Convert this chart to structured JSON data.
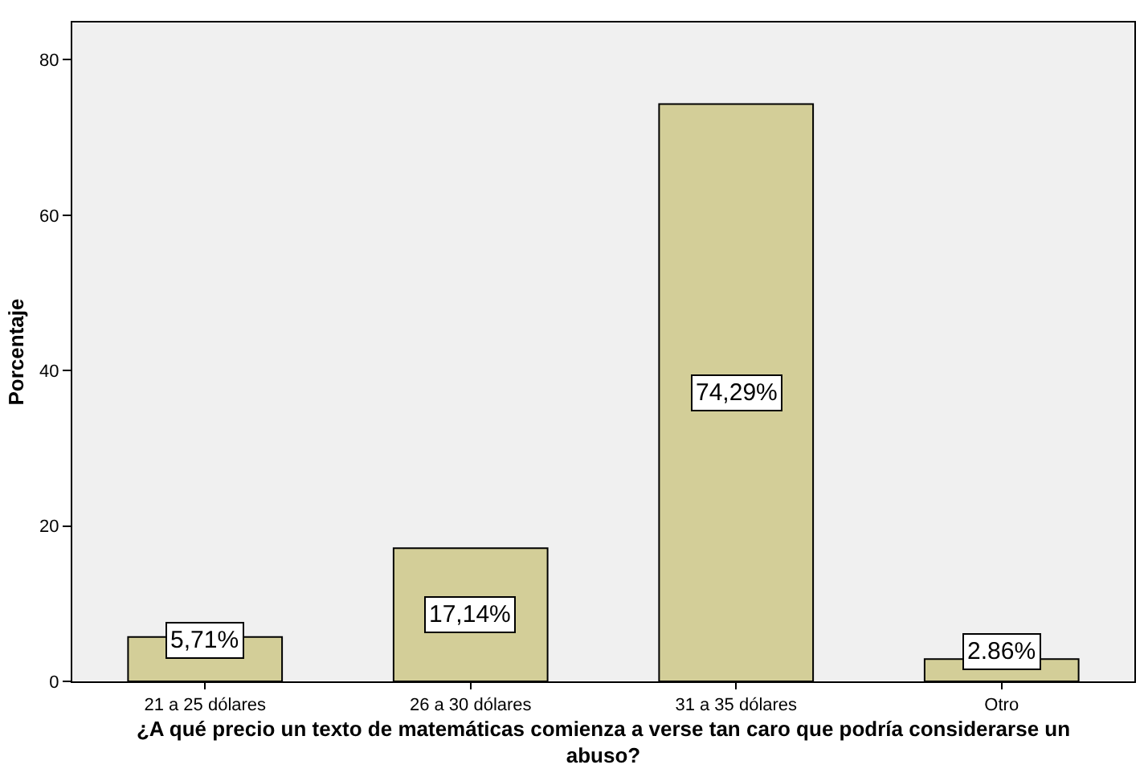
{
  "chart_data": {
    "type": "bar",
    "categories": [
      "21 a 25 dólares",
      "26 a 30 dólares",
      "31 a 35 dólares",
      "Otro"
    ],
    "values": [
      5.71,
      17.14,
      74.29,
      2.86
    ],
    "value_labels": [
      "5,71%",
      "17,14%",
      "74,29%",
      "2.86%"
    ],
    "color": "#d3ce98",
    "xlabel": "¿A qué precio un texto de matemáticas comienza a verse tan caro que podría considerarse un abuso?",
    "ylabel": "Porcentaje",
    "ylim": [
      0,
      84.8
    ],
    "yticks": [
      0,
      20,
      40,
      60,
      80
    ],
    "grid": false,
    "legend": false
  }
}
